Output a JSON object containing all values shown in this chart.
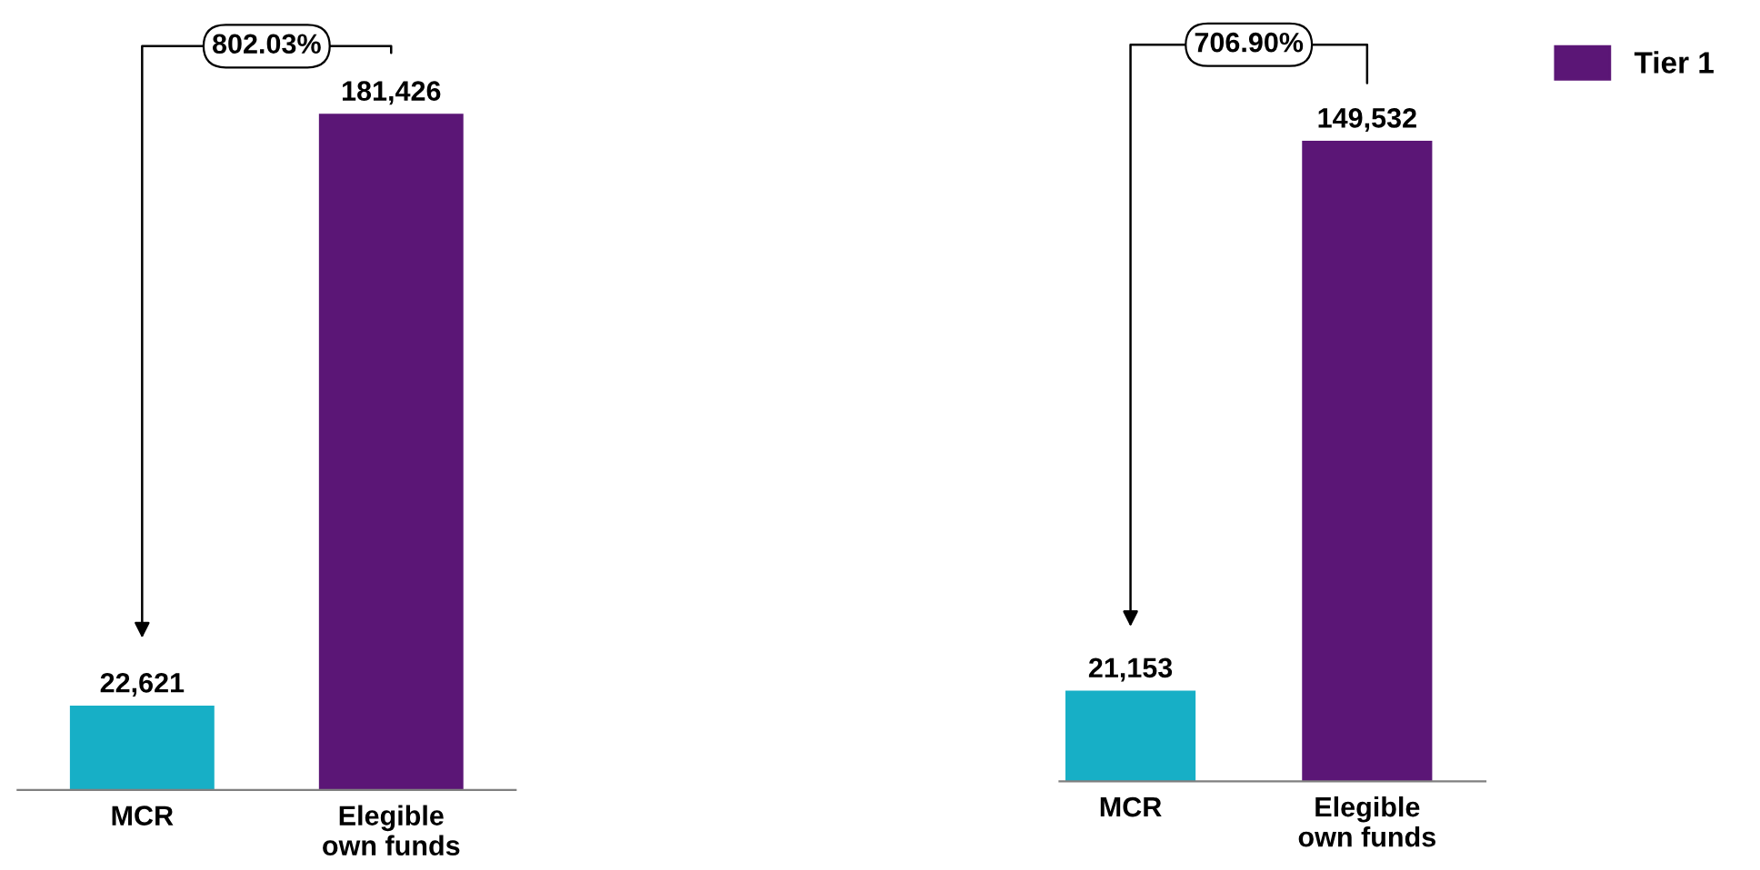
{
  "chart_data": [
    {
      "type": "bar",
      "categories": [
        "MCR",
        "Elegible\nown funds"
      ],
      "series": [
        {
          "colors": [
            "#17afc6",
            "#5b1676"
          ],
          "values": [
            22621,
            181426
          ],
          "value_labels": [
            "22,621",
            "181,426"
          ]
        }
      ],
      "annotations": [
        "802.03%"
      ],
      "legend": false
    },
    {
      "type": "bar",
      "categories": [
        "MCR",
        "Elegible\nown funds"
      ],
      "series": [
        {
          "name": "Tier 1",
          "color": "#5b1676",
          "colors": [
            "#17afc6",
            "#5b1676"
          ],
          "values": [
            21153,
            149532
          ],
          "value_labels": [
            "21,153",
            "149,532"
          ]
        }
      ],
      "annotations": [
        "706.90%"
      ],
      "legend": "right"
    }
  ]
}
